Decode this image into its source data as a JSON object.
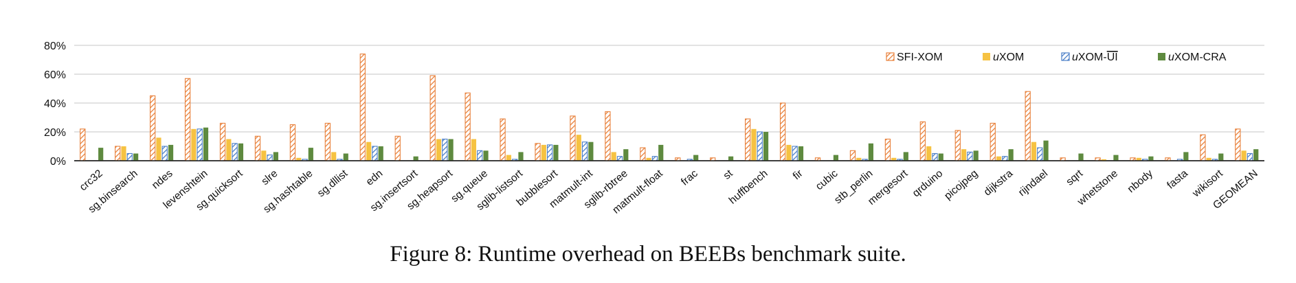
{
  "caption": "Figure 8: Runtime overhead on BEEBs benchmark suite.",
  "chart_data": {
    "type": "bar",
    "categories": [
      "crc32",
      "sg.binsearch",
      "ndes",
      "levenshtein",
      "sg.quicksort",
      "slre",
      "sg.hashtable",
      "sg.dllist",
      "edn",
      "sg.insertsort",
      "sg.heapsort",
      "sg.queue",
      "sglib-listsort",
      "bubblesort",
      "matmult-int",
      "sglib-rbtree",
      "matmult-float",
      "frac",
      "st",
      "huffbench",
      "fir",
      "cubic",
      "stb_perlin",
      "mergesort",
      "qrduino",
      "picojpeg",
      "dijkstra",
      "rijndael",
      "sqrt",
      "whetstone",
      "nbody",
      "fasta",
      "wikisort",
      "GEOMEAN"
    ],
    "series": [
      {
        "name": "SFI-XOM",
        "color": "#E8803A",
        "pattern": "hatch",
        "values": [
          22,
          10,
          45,
          57,
          26,
          17,
          25,
          26,
          74,
          17,
          59,
          47,
          29,
          12,
          31,
          34,
          9,
          2,
          2,
          29,
          40,
          2,
          7,
          15,
          27,
          21,
          26,
          48,
          2,
          2,
          2,
          2,
          18,
          22
        ]
      },
      {
        "name": "uXOM",
        "color": "#F6C242",
        "pattern": "solid",
        "values": [
          0,
          10,
          16,
          22,
          15,
          7,
          2,
          6,
          13,
          0,
          15,
          15,
          4,
          11,
          18,
          6,
          2,
          0,
          0,
          22,
          11,
          0,
          2,
          2,
          10,
          8,
          3,
          13,
          0,
          1,
          2,
          0,
          2,
          7
        ]
      },
      {
        "name": "uXOM-UI",
        "color": "#4A7EC7",
        "pattern": "hatch",
        "values": [
          0,
          5,
          10,
          22,
          12,
          4,
          1,
          1,
          10,
          0,
          15,
          7,
          1,
          11,
          13,
          3,
          3,
          1,
          0,
          20,
          10,
          0,
          1,
          1,
          5,
          6,
          3,
          9,
          0,
          0,
          1,
          1,
          1,
          5
        ]
      },
      {
        "name": "uXOM-CRA",
        "color": "#5E8A3F",
        "pattern": "solid",
        "values": [
          9,
          5,
          11,
          23,
          12,
          6,
          9,
          5,
          10,
          3,
          15,
          7,
          6,
          11,
          13,
          8,
          11,
          4,
          3,
          20,
          10,
          4,
          12,
          6,
          5,
          7,
          8,
          14,
          5,
          4,
          3,
          6,
          5,
          8
        ]
      }
    ],
    "legend_labels": [
      {
        "prefix": "SFI-XOM",
        "italic": "",
        "rest": "",
        "overline": ""
      },
      {
        "prefix": "",
        "italic": "u",
        "rest": "XOM",
        "overline": ""
      },
      {
        "prefix": "",
        "italic": "u",
        "rest": "XOM-",
        "overline": "UI"
      },
      {
        "prefix": "",
        "italic": "u",
        "rest": "XOM-CRA",
        "overline": ""
      }
    ],
    "yticks": [
      "0%",
      "20%",
      "40%",
      "60%",
      "80%"
    ],
    "ylim": [
      0,
      80
    ],
    "grid": true,
    "legend_position": "top-right"
  }
}
